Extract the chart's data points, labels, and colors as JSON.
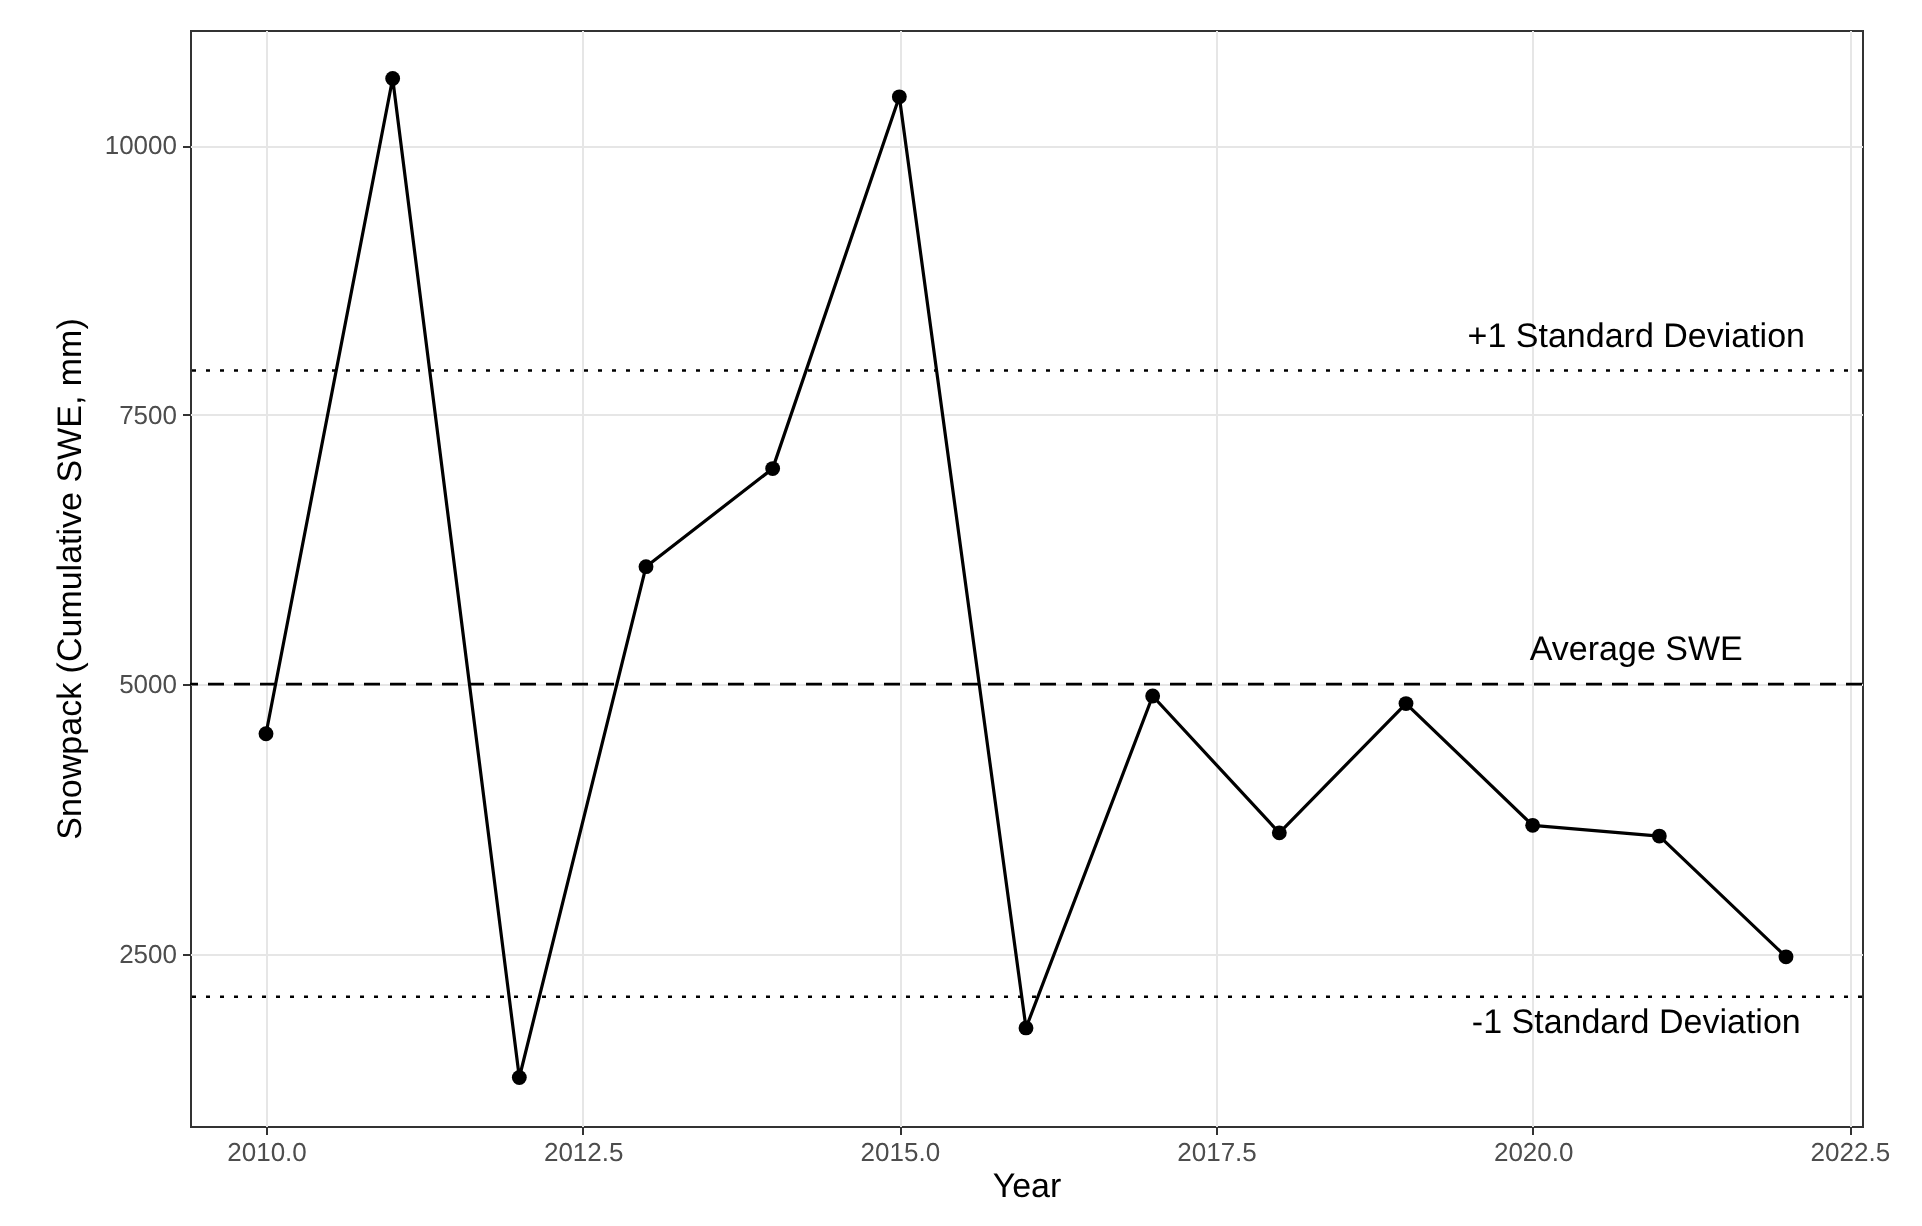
{
  "chart_data": {
    "type": "line",
    "xlabel": "Year",
    "ylabel": "Snowpack (Cumulative SWE, mm)",
    "x": [
      2010,
      2011,
      2012,
      2013,
      2014,
      2015,
      2016,
      2017,
      2018,
      2019,
      2020,
      2021,
      2022
    ],
    "series": [
      {
        "color": "#000000",
        "values": [
          4540,
          10620,
          1350,
          6090,
          7000,
          10450,
          1810,
          4890,
          3620,
          4820,
          3690,
          3590,
          2470
        ]
      }
    ],
    "xlim": [
      2009.4,
      2022.6
    ],
    "xticks": [
      {
        "value": 2010,
        "label": "2010.0"
      },
      {
        "value": 2012.5,
        "label": "2012.5"
      },
      {
        "value": 2015,
        "label": "2015.0"
      },
      {
        "value": 2017.5,
        "label": "2017.5"
      },
      {
        "value": 2020,
        "label": "2020.0"
      },
      {
        "value": 2022.5,
        "label": "2022.5"
      }
    ],
    "ylim": [
      900,
      11070
    ],
    "yticks": [
      2500,
      5000,
      7500,
      10000
    ],
    "ref_lines": [
      {
        "axis": "y",
        "value": 7910,
        "label": "+1 Standard Deviation",
        "line_style": "dotted",
        "color": "#000000"
      },
      {
        "axis": "y",
        "value": 5000,
        "label": "Average SWE",
        "line_style": "dashed",
        "color": "#000000"
      },
      {
        "axis": "y",
        "value": 2100,
        "label": "-1 Standard Deviation",
        "line_style": "dotted",
        "color": "#000000"
      }
    ],
    "grid": true,
    "marker": "circle",
    "line_style": "solid"
  }
}
